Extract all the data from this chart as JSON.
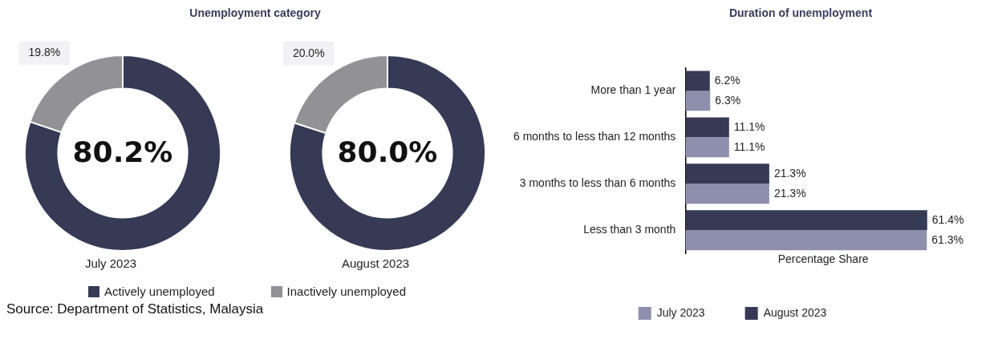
{
  "chart_data": [
    {
      "type": "donut",
      "title": "Unemployment category",
      "xlabel": "July 2023",
      "categories": [
        "Actively unemployed",
        "Inactively unemployed"
      ],
      "values": [
        80.2,
        19.8
      ],
      "colors": [
        "#363a55",
        "#929296"
      ],
      "value_labels": [
        "80.2%",
        "19.8%"
      ],
      "legend": "bottom",
      "annotations": [
        "Source: Department of Statistics, Malaysia"
      ]
    },
    {
      "type": "donut",
      "xlabel": "August 2023",
      "categories": [
        null,
        null
      ],
      "values": [
        80.0,
        20.0
      ],
      "colors": [
        "#363a55",
        "#929296"
      ],
      "value_labels": [
        "80.0%",
        "20.0%"
      ]
    },
    {
      "type": "bar",
      "orientation": "horizontal",
      "title": "Duration of unemployment",
      "xlabel": "Percentage Share",
      "categories": [
        "More than 1 year",
        "6 months to less than 12 months",
        "3 months to less than 6 months",
        "Less than 3 month"
      ],
      "series": [
        {
          "name": "July 2023",
          "color": "#8e8fac",
          "values": [
            6.3,
            11.1,
            21.3,
            61.3
          ],
          "value_labels": [
            "6.3%",
            "11.1%",
            "21.3%",
            "61.3%"
          ]
        },
        {
          "name": "August 2023",
          "color": "#363a55",
          "values": [
            6.2,
            11.1,
            21.3,
            61.4
          ],
          "value_labels": [
            "6.2%",
            "11.1%",
            "21.3%",
            "61.4%"
          ]
        }
      ],
      "legend": "bottom",
      "tick_labels": "y",
      "grid": false
    }
  ]
}
